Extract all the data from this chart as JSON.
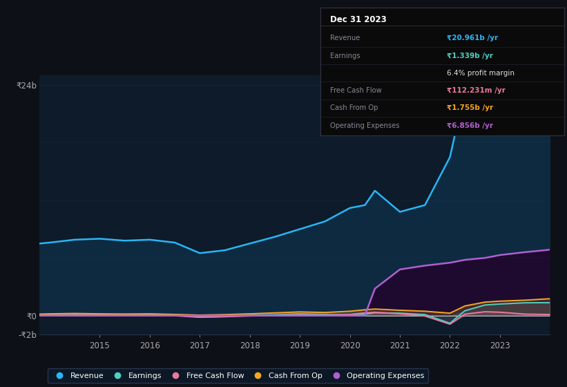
{
  "background_color": "#0d1117",
  "plot_bg_color": "#0d1b2a",
  "years": [
    2013.8,
    2014.0,
    2014.5,
    2015.0,
    2015.5,
    2016.0,
    2016.5,
    2017.0,
    2017.5,
    2018.0,
    2018.5,
    2019.0,
    2019.5,
    2020.0,
    2020.3,
    2020.5,
    2021.0,
    2021.5,
    2022.0,
    2022.3,
    2022.7,
    2023.0,
    2023.5,
    2024.0
  ],
  "revenue": [
    7.5,
    7.6,
    7.9,
    8.0,
    7.8,
    7.9,
    7.6,
    6.5,
    6.8,
    7.5,
    8.2,
    9.0,
    9.8,
    11.2,
    11.5,
    13.0,
    10.8,
    11.5,
    16.5,
    23.5,
    22.5,
    22.0,
    21.5,
    20.961
  ],
  "earnings": [
    0.05,
    0.05,
    0.1,
    0.08,
    0.06,
    0.08,
    0.04,
    -0.15,
    -0.1,
    0.02,
    0.08,
    0.18,
    0.12,
    0.08,
    0.15,
    0.3,
    0.25,
    0.1,
    -0.8,
    0.5,
    1.1,
    1.2,
    1.33,
    1.339
  ],
  "free_cash_flow": [
    0.04,
    0.04,
    0.06,
    0.05,
    0.03,
    0.02,
    -0.02,
    -0.18,
    -0.12,
    -0.04,
    0.0,
    0.08,
    0.04,
    0.12,
    0.28,
    0.35,
    0.18,
    -0.05,
    -0.9,
    0.15,
    0.4,
    0.35,
    0.15,
    0.112
  ],
  "cash_from_op": [
    0.15,
    0.18,
    0.22,
    0.18,
    0.16,
    0.18,
    0.12,
    0.05,
    0.1,
    0.18,
    0.28,
    0.38,
    0.32,
    0.45,
    0.6,
    0.68,
    0.55,
    0.45,
    0.25,
    1.0,
    1.4,
    1.5,
    1.6,
    1.755
  ],
  "op_expenses": [
    0.0,
    0.0,
    0.0,
    0.0,
    0.0,
    0.0,
    0.0,
    0.0,
    0.0,
    0.0,
    0.0,
    0.0,
    0.0,
    0.0,
    0.0,
    2.8,
    4.8,
    5.2,
    5.5,
    5.8,
    6.0,
    6.3,
    6.6,
    6.856
  ],
  "revenue_color": "#29b6f6",
  "earnings_color": "#4dd0c4",
  "fcf_color": "#e879a0",
  "cfo_color": "#f5a623",
  "opex_color": "#b060d0",
  "revenue_fill_color": "#0d2a40",
  "opex_fill_color": "#1e0a2e",
  "ylim": [
    -2.0,
    25.0
  ],
  "ytick_labels": [
    "₹24b",
    "₹0",
    "-₹2b"
  ],
  "ytick_values": [
    24,
    0,
    -2
  ],
  "xtick_years": [
    2015,
    2016,
    2017,
    2018,
    2019,
    2020,
    2021,
    2022,
    2023
  ],
  "legend_labels": [
    "Revenue",
    "Earnings",
    "Free Cash Flow",
    "Cash From Op",
    "Operating Expenses"
  ],
  "legend_colors": [
    "#29b6f6",
    "#4dd0c4",
    "#e879a0",
    "#f5a623",
    "#b060d0"
  ],
  "table_title": "Dec 31 2023",
  "table_rows": [
    {
      "label": "Revenue",
      "value": "₹20.961b /yr",
      "color": "#29b6f6",
      "bold_value": true
    },
    {
      "label": "Earnings",
      "value": "₹1.339b /yr",
      "color": "#4dd0c4",
      "bold_value": true
    },
    {
      "label": "",
      "value": "6.4% profit margin",
      "color": "#e0e0e0",
      "bold_value": false
    },
    {
      "label": "Free Cash Flow",
      "value": "₹112.231m /yr",
      "color": "#e879a0",
      "bold_value": true
    },
    {
      "label": "Cash From Op",
      "value": "₹1.755b /yr",
      "color": "#f5a623",
      "bold_value": true
    },
    {
      "label": "Operating Expenses",
      "value": "₹6.856b /yr",
      "color": "#b060d0",
      "bold_value": true
    }
  ]
}
